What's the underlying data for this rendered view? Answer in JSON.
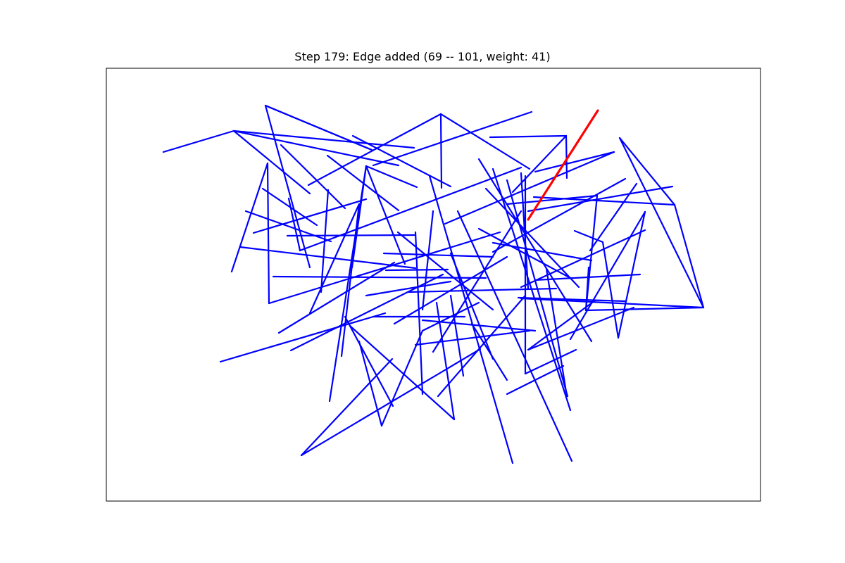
{
  "title": "Step 179: Edge added (69 -- 101, weight: 41)",
  "colors": {
    "edge": "#0000ff",
    "highlight": "#ff0000",
    "frame": "#000000",
    "background": "#ffffff"
  },
  "graph": {
    "edges_blue": [
      [
        [
          232,
          216
        ],
        [
          332,
          186
        ]
      ],
      [
        [
          332,
          186
        ],
        [
          588,
          210
        ]
      ],
      [
        [
          332,
          186
        ],
        [
          440,
          275
        ]
      ],
      [
        [
          332,
          186
        ],
        [
          566,
          235
        ]
      ],
      [
        [
          377,
          150
        ],
        [
          528,
          213
        ]
      ],
      [
        [
          528,
          213
        ],
        [
          377,
          150
        ]
      ],
      [
        [
          377,
          150
        ],
        [
          440,
          380
        ]
      ],
      [
        [
          626,
          162
        ],
        [
          438,
          263
        ]
      ],
      [
        [
          626,
          162
        ],
        [
          752,
          240
        ]
      ],
      [
        [
          626,
          162
        ],
        [
          627,
          267
        ]
      ],
      [
        [
          755,
          159
        ],
        [
          530,
          235
        ]
      ],
      [
        [
          501,
          193
        ],
        [
          640,
          265
        ]
      ],
      [
        [
          696,
          195
        ],
        [
          804,
          193
        ]
      ],
      [
        [
          804,
          193
        ],
        [
          728,
          273
        ]
      ],
      [
        [
          804,
          193
        ],
        [
          805,
          253
        ]
      ],
      [
        [
          880,
          196
        ],
        [
          958,
          291
        ]
      ],
      [
        [
          958,
          291
        ],
        [
          999,
          437
        ]
      ],
      [
        [
          999,
          437
        ],
        [
          880,
          196
        ]
      ],
      [
        [
          958,
          291
        ],
        [
          758,
          280
        ]
      ],
      [
        [
          999,
          437
        ],
        [
          832,
          441
        ]
      ],
      [
        [
          999,
          437
        ],
        [
          740,
          424
        ]
      ],
      [
        [
          872,
          216
        ],
        [
          632,
          318
        ]
      ],
      [
        [
          872,
          216
        ],
        [
          760,
          244
        ]
      ],
      [
        [
          888,
          254
        ],
        [
          700,
          358
        ]
      ],
      [
        [
          904,
          261
        ],
        [
          838,
          356
        ]
      ],
      [
        [
          955,
          265
        ],
        [
          750,
          300
        ]
      ],
      [
        [
          916,
          301
        ],
        [
          878,
          480
        ]
      ],
      [
        [
          916,
          301
        ],
        [
          810,
          482
        ]
      ],
      [
        [
          916,
          327
        ],
        [
          740,
          408
        ]
      ],
      [
        [
          909,
          390
        ],
        [
          760,
          398
        ]
      ],
      [
        [
          888,
          428
        ],
        [
          736,
          423
        ]
      ],
      [
        [
          856,
          344
        ],
        [
          878,
          480
        ]
      ],
      [
        [
          856,
          344
        ],
        [
          816,
          328
        ]
      ],
      [
        [
          399,
          206
        ],
        [
          490,
          296
        ]
      ],
      [
        [
          465,
          221
        ],
        [
          566,
          299
        ]
      ],
      [
        [
          380,
          232
        ],
        [
          329,
          386
        ]
      ],
      [
        [
          380,
          232
        ],
        [
          382,
          431
        ]
      ],
      [
        [
          373,
          268
        ],
        [
          450,
          320
        ]
      ],
      [
        [
          349,
          300
        ],
        [
          470,
          343
        ]
      ],
      [
        [
          360,
          331
        ],
        [
          520,
          283
        ]
      ],
      [
        [
          341,
          351
        ],
        [
          590,
          381
        ]
      ],
      [
        [
          388,
          393
        ],
        [
          690,
          395
        ]
      ],
      [
        [
          382,
          431
        ],
        [
          710,
          330
        ]
      ],
      [
        [
          396,
          473
        ],
        [
          560,
          373
        ]
      ],
      [
        [
          413,
          498
        ],
        [
          629,
          390
        ]
      ],
      [
        [
          313,
          514
        ],
        [
          547,
          445
        ]
      ],
      [
        [
          410,
          282
        ],
        [
          426,
          356
        ]
      ],
      [
        [
          426,
          356
        ],
        [
          740,
          238
        ]
      ],
      [
        [
          408,
          335
        ],
        [
          590,
          334
        ]
      ],
      [
        [
          520,
          236
        ],
        [
          468,
          570
        ]
      ],
      [
        [
          520,
          236
        ],
        [
          500,
          380
        ]
      ],
      [
        [
          520,
          236
        ],
        [
          592,
          266
        ]
      ],
      [
        [
          520,
          236
        ],
        [
          575,
          375
        ]
      ],
      [
        [
          510,
          290
        ],
        [
          485,
          506
        ]
      ],
      [
        [
          510,
          290
        ],
        [
          440,
          445
        ]
      ],
      [
        [
          456,
          415
        ],
        [
          466,
          270
        ]
      ],
      [
        [
          510,
          485
        ],
        [
          542,
          605
        ]
      ],
      [
        [
          542,
          605
        ],
        [
          600,
          470
        ]
      ],
      [
        [
          428,
          647
        ],
        [
          682,
          496
        ]
      ],
      [
        [
          428,
          647
        ],
        [
          557,
          510
        ]
      ],
      [
        [
          490,
          450
        ],
        [
          558,
          577
        ]
      ],
      [
        [
          497,
          463
        ],
        [
          645,
          596
        ]
      ],
      [
        [
          645,
          596
        ],
        [
          620,
          430
        ]
      ],
      [
        [
          590,
          330
        ],
        [
          600,
          560
        ]
      ],
      [
        [
          590,
          490
        ],
        [
          752,
          470
        ]
      ],
      [
        [
          615,
          500
        ],
        [
          740,
          300
        ]
      ],
      [
        [
          622,
          563
        ],
        [
          746,
          420
        ]
      ],
      [
        [
          610,
          250
        ],
        [
          728,
          658
        ]
      ],
      [
        [
          650,
          300
        ],
        [
          812,
          655
        ]
      ],
      [
        [
          640,
          420
        ],
        [
          658,
          534
        ]
      ],
      [
        [
          680,
          226
        ],
        [
          840,
          485
        ]
      ],
      [
        [
          700,
          240
        ],
        [
          810,
          583
        ]
      ],
      [
        [
          720,
          256
        ],
        [
          806,
          563
        ]
      ],
      [
        [
          740,
          246
        ],
        [
          750,
          410
        ]
      ],
      [
        [
          746,
          250
        ],
        [
          746,
          531
        ]
      ],
      [
        [
          746,
          531
        ],
        [
          818,
          497
        ]
      ],
      [
        [
          750,
          497
        ],
        [
          900,
          437
        ]
      ],
      [
        [
          750,
          497
        ],
        [
          845,
          427
        ]
      ],
      [
        [
          800,
          520
        ],
        [
          720,
          560
        ]
      ],
      [
        [
          690,
          268
        ],
        [
          822,
          408
        ]
      ],
      [
        [
          680,
          325
        ],
        [
          810,
          395
        ]
      ],
      [
        [
          700,
          345
        ],
        [
          840,
          370
        ]
      ],
      [
        [
          720,
          290
        ],
        [
          848,
          278
        ]
      ],
      [
        [
          836,
          380
        ],
        [
          832,
          441
        ]
      ],
      [
        [
          832,
          441
        ],
        [
          848,
          278
        ]
      ],
      [
        [
          776,
          382
        ],
        [
          805,
          563
        ]
      ],
      [
        [
          548,
          384
        ],
        [
          636,
          383
        ]
      ],
      [
        [
          545,
          360
        ],
        [
          700,
          365
        ]
      ],
      [
        [
          520,
          420
        ],
        [
          640,
          400
        ]
      ],
      [
        [
          530,
          450
        ],
        [
          660,
          450
        ]
      ],
      [
        [
          580,
          415
        ],
        [
          790,
          410
        ]
      ],
      [
        [
          600,
          455
        ],
        [
          760,
          470
        ]
      ],
      [
        [
          565,
          330
        ],
        [
          700,
          440
        ]
      ],
      [
        [
          600,
          440
        ],
        [
          615,
          300
        ]
      ],
      [
        [
          640,
          360
        ],
        [
          700,
          510
        ]
      ],
      [
        [
          670,
          460
        ],
        [
          720,
          540
        ]
      ],
      [
        [
          560,
          460
        ],
        [
          720,
          365
        ]
      ],
      [
        [
          600,
          470
        ],
        [
          680,
          430
        ]
      ]
    ],
    "edge_highlight": [
      [
        750,
        312
      ],
      [
        849,
        157
      ]
    ]
  }
}
